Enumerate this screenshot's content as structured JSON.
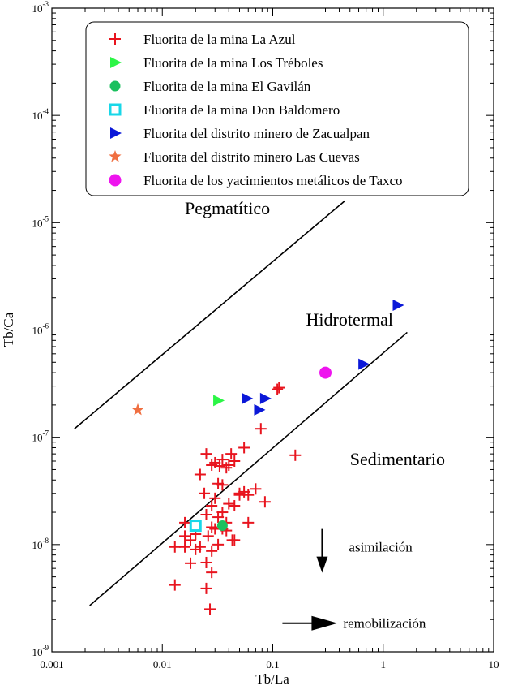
{
  "chart_data": {
    "type": "scatter",
    "xscale": "log",
    "yscale": "log",
    "xlim": [
      0.001,
      10
    ],
    "ylim": [
      1e-09,
      0.001
    ],
    "xlabel": "Tb/La",
    "ylabel": "Tb/Ca",
    "x_tick_labels": [
      "0.001",
      "0.01",
      "0.1",
      "1",
      "10"
    ],
    "y_tick_labels": [
      {
        "base": "10",
        "exp": "-9"
      },
      {
        "base": "10",
        "exp": "-8"
      },
      {
        "base": "10",
        "exp": "-7"
      },
      {
        "base": "10",
        "exp": "-6"
      },
      {
        "base": "10",
        "exp": "-5"
      },
      {
        "base": "10",
        "exp": "-4"
      },
      {
        "base": "10",
        "exp": "-3"
      }
    ],
    "legend_position": "top",
    "series": [
      {
        "name": "Fluorita de la mina La Azul",
        "marker": "plus",
        "color": "#e8141e",
        "points": [
          [
            0.11,
            2.8e-07
          ],
          [
            0.114,
            2.9e-07
          ],
          [
            0.078,
            1.2e-07
          ],
          [
            0.055,
            8e-08
          ],
          [
            0.16,
            6.8e-08
          ],
          [
            0.025,
            7e-08
          ],
          [
            0.03,
            5.8e-08
          ],
          [
            0.035,
            6.2e-08
          ],
          [
            0.04,
            5.5e-08
          ],
          [
            0.042,
            7e-08
          ],
          [
            0.028,
            5.5e-08
          ],
          [
            0.033,
            5.4e-08
          ],
          [
            0.038,
            5.2e-08
          ],
          [
            0.045,
            6e-08
          ],
          [
            0.022,
            4.5e-08
          ],
          [
            0.032,
            3.7e-08
          ],
          [
            0.035,
            3.6e-08
          ],
          [
            0.024,
            3e-08
          ],
          [
            0.03,
            2.7e-08
          ],
          [
            0.028,
            2.3e-08
          ],
          [
            0.05,
            3e-08
          ],
          [
            0.055,
            3.1e-08
          ],
          [
            0.06,
            2.9e-08
          ],
          [
            0.07,
            3.3e-08
          ],
          [
            0.085,
            2.5e-08
          ],
          [
            0.045,
            2.3e-08
          ],
          [
            0.04,
            2.4e-08
          ],
          [
            0.025,
            1.9e-08
          ],
          [
            0.032,
            1.8e-08
          ],
          [
            0.038,
            1.6e-08
          ],
          [
            0.06,
            1.6e-08
          ],
          [
            0.016,
            1.6e-08
          ],
          [
            0.028,
            1.45e-08
          ],
          [
            0.03,
            1.4e-08
          ],
          [
            0.035,
            1.4e-08
          ],
          [
            0.038,
            1.35e-08
          ],
          [
            0.02,
            1.25e-08
          ],
          [
            0.016,
            1.2e-08
          ],
          [
            0.026,
            1.2e-08
          ],
          [
            0.045,
            1.1e-08
          ],
          [
            0.013,
            9.5e-09
          ],
          [
            0.016,
            9.5e-09
          ],
          [
            0.02,
            9e-09
          ],
          [
            0.022,
            9.5e-09
          ],
          [
            0.028,
            8.7e-09
          ],
          [
            0.032,
            1e-08
          ],
          [
            0.018,
            6.7e-09
          ],
          [
            0.025,
            6.8e-09
          ],
          [
            0.028,
            5.5e-09
          ],
          [
            0.013,
            4.2e-09
          ],
          [
            0.025,
            3.9e-09
          ],
          [
            0.027,
            2.5e-09
          ],
          [
            0.018,
            1.1e-08
          ],
          [
            0.035,
            2e-08
          ],
          [
            0.05,
            2.9e-08
          ],
          [
            0.043,
            1.1e-08
          ]
        ]
      },
      {
        "name": "Fluorita de la mina Los Tréboles",
        "marker": "triangle-right",
        "color": "#2cf546",
        "points": [
          [
            0.032,
            2.2e-07
          ]
        ]
      },
      {
        "name": "Fluorita de la mina El Gavilán",
        "marker": "circle",
        "color": "#1bc05e",
        "points": [
          [
            0.035,
            1.5e-08
          ]
        ]
      },
      {
        "name": "Fluorita de la mina Don Baldomero",
        "marker": "square-open",
        "color": "#18d7e8",
        "points": [
          [
            0.02,
            1.5e-08
          ]
        ]
      },
      {
        "name": "Fluorita del distrito minero de Zacualpan",
        "marker": "triangle-right",
        "color": "#0b18d8",
        "points": [
          [
            0.058,
            2.3e-07
          ],
          [
            0.085,
            2.3e-07
          ],
          [
            0.075,
            1.8e-07
          ],
          [
            0.66,
            4.8e-07
          ],
          [
            1.35,
            1.7e-06
          ]
        ]
      },
      {
        "name": "Fluorita del distrito minero Las Cuevas",
        "marker": "star",
        "color": "#f06f41",
        "points": [
          [
            0.006,
            1.8e-07
          ]
        ]
      },
      {
        "name": "Fluorita de los yacimientos metálicos de Taxco",
        "marker": "circle-large",
        "color": "#ee14ee",
        "points": [
          [
            0.3,
            4e-07
          ]
        ]
      }
    ],
    "boundary_lines": [
      {
        "name": "upper",
        "points": [
          [
            0.0016,
            1.2e-07
          ],
          [
            0.45,
            1.6e-05
          ]
        ]
      },
      {
        "name": "lower",
        "points": [
          [
            0.0022,
            2.7e-09
          ],
          [
            1.65,
            9.5e-07
          ]
        ]
      }
    ],
    "region_labels": [
      {
        "text": "Pegmatítico",
        "x": 0.016,
        "y": 1.2e-05
      },
      {
        "text": "Hidrotermal",
        "x": 0.2,
        "y": 1.1e-06
      },
      {
        "text": "Sedimentario",
        "x": 0.5,
        "y": 5.5e-08
      }
    ],
    "annotations": [
      {
        "text": "asimilación",
        "arrow": "down",
        "x": 0.28,
        "y": 9.2e-09
      },
      {
        "text": "remobilización",
        "arrow": "right",
        "x": 0.42,
        "y": 1.85e-09
      }
    ]
  }
}
